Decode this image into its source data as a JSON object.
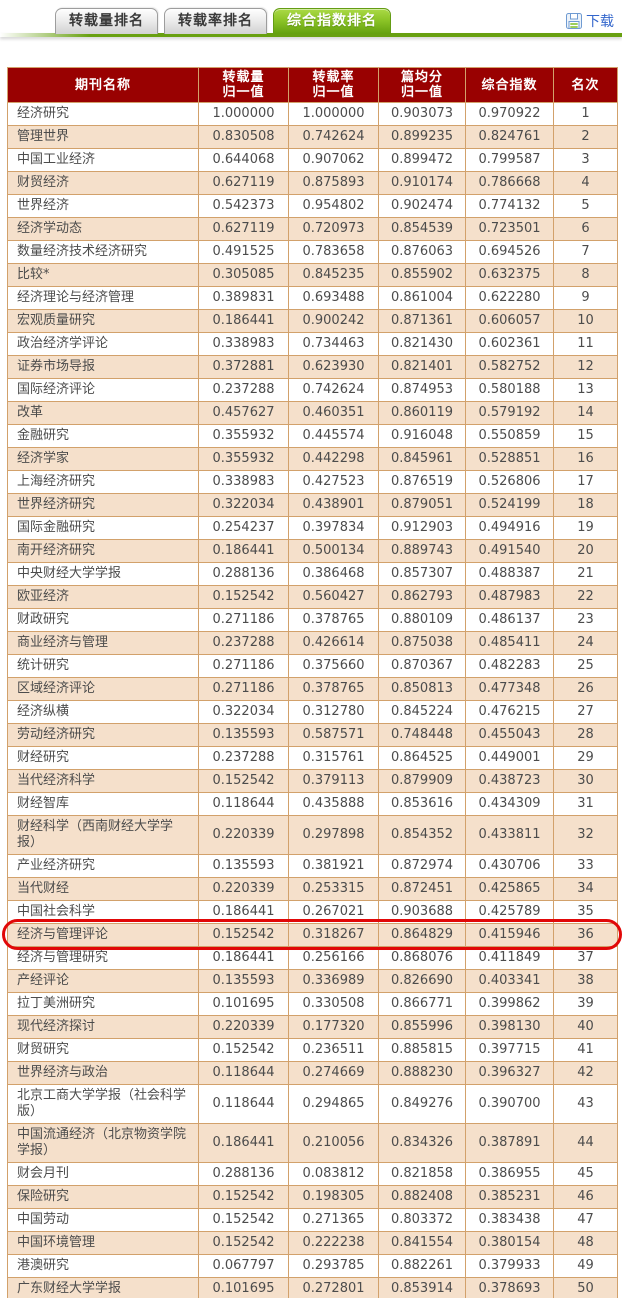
{
  "tabs": [
    {
      "label": "转载量排名",
      "active": false
    },
    {
      "label": "转载率排名",
      "active": false
    },
    {
      "label": "综合指数排名",
      "active": true
    }
  ],
  "toolbar": {
    "download_label": "下载",
    "download_icon": "floppy-disk-icon"
  },
  "table": {
    "headers": [
      "期刊名称",
      "转载量\n归一值",
      "转载率\n归一值",
      "篇均分\n归一值",
      "综合指数",
      "名次"
    ],
    "highlighted_rank": 36,
    "rows": [
      [
        "经济研究",
        "1.000000",
        "1.000000",
        "0.903073",
        "0.970922",
        "1"
      ],
      [
        "管理世界",
        "0.830508",
        "0.742624",
        "0.899235",
        "0.824761",
        "2"
      ],
      [
        "中国工业经济",
        "0.644068",
        "0.907062",
        "0.899472",
        "0.799587",
        "3"
      ],
      [
        "财贸经济",
        "0.627119",
        "0.875893",
        "0.910174",
        "0.786668",
        "4"
      ],
      [
        "世界经济",
        "0.542373",
        "0.954802",
        "0.902474",
        "0.774132",
        "5"
      ],
      [
        "经济学动态",
        "0.627119",
        "0.720973",
        "0.854539",
        "0.723501",
        "6"
      ],
      [
        "数量经济技术经济研究",
        "0.491525",
        "0.783658",
        "0.876063",
        "0.694526",
        "7"
      ],
      [
        "比较*",
        "0.305085",
        "0.845235",
        "0.855902",
        "0.632375",
        "8"
      ],
      [
        "经济理论与经济管理",
        "0.389831",
        "0.693488",
        "0.861004",
        "0.622280",
        "9"
      ],
      [
        "宏观质量研究",
        "0.186441",
        "0.900242",
        "0.871361",
        "0.606057",
        "10"
      ],
      [
        "政治经济学评论",
        "0.338983",
        "0.734463",
        "0.821430",
        "0.602361",
        "11"
      ],
      [
        "证券市场导报",
        "0.372881",
        "0.623930",
        "0.821401",
        "0.582752",
        "12"
      ],
      [
        "国际经济评论",
        "0.237288",
        "0.742624",
        "0.874953",
        "0.580188",
        "13"
      ],
      [
        "改革",
        "0.457627",
        "0.460351",
        "0.860119",
        "0.579192",
        "14"
      ],
      [
        "金融研究",
        "0.355932",
        "0.445574",
        "0.916048",
        "0.550859",
        "15"
      ],
      [
        "经济学家",
        "0.355932",
        "0.442298",
        "0.845961",
        "0.528851",
        "16"
      ],
      [
        "上海经济研究",
        "0.338983",
        "0.427523",
        "0.876519",
        "0.526806",
        "17"
      ],
      [
        "世界经济研究",
        "0.322034",
        "0.438901",
        "0.879051",
        "0.524199",
        "18"
      ],
      [
        "国际金融研究",
        "0.254237",
        "0.397834",
        "0.912903",
        "0.494916",
        "19"
      ],
      [
        "南开经济研究",
        "0.186441",
        "0.500134",
        "0.889743",
        "0.491540",
        "20"
      ],
      [
        "中央财经大学学报",
        "0.288136",
        "0.386468",
        "0.857307",
        "0.488387",
        "21"
      ],
      [
        "欧亚经济",
        "0.152542",
        "0.560427",
        "0.862793",
        "0.487983",
        "22"
      ],
      [
        "财政研究",
        "0.271186",
        "0.378765",
        "0.880109",
        "0.486137",
        "23"
      ],
      [
        "商业经济与管理",
        "0.237288",
        "0.426614",
        "0.875038",
        "0.485411",
        "24"
      ],
      [
        "统计研究",
        "0.271186",
        "0.375660",
        "0.870367",
        "0.482283",
        "25"
      ],
      [
        "区域经济评论",
        "0.271186",
        "0.378765",
        "0.850813",
        "0.477348",
        "26"
      ],
      [
        "经济纵横",
        "0.322034",
        "0.312780",
        "0.845224",
        "0.476215",
        "27"
      ],
      [
        "劳动经济研究",
        "0.135593",
        "0.587571",
        "0.748448",
        "0.455043",
        "28"
      ],
      [
        "财经研究",
        "0.237288",
        "0.315761",
        "0.864525",
        "0.449001",
        "29"
      ],
      [
        "当代经济科学",
        "0.152542",
        "0.379113",
        "0.879909",
        "0.438723",
        "30"
      ],
      [
        "财经智库",
        "0.118644",
        "0.435888",
        "0.853616",
        "0.434309",
        "31"
      ],
      [
        "财经科学（西南财经大学学报）",
        "0.220339",
        "0.297898",
        "0.854352",
        "0.433811",
        "32"
      ],
      [
        "产业经济研究",
        "0.135593",
        "0.381921",
        "0.872974",
        "0.430706",
        "33"
      ],
      [
        "当代财经",
        "0.220339",
        "0.253315",
        "0.872451",
        "0.425865",
        "34"
      ],
      [
        "中国社会科学",
        "0.186441",
        "0.267021",
        "0.903688",
        "0.425789",
        "35"
      ],
      [
        "经济与管理评论",
        "0.152542",
        "0.318267",
        "0.864829",
        "0.415946",
        "36"
      ],
      [
        "经济与管理研究",
        "0.186441",
        "0.256166",
        "0.868076",
        "0.411849",
        "37"
      ],
      [
        "产经评论",
        "0.135593",
        "0.336989",
        "0.826690",
        "0.403341",
        "38"
      ],
      [
        "拉丁美洲研究",
        "0.101695",
        "0.330508",
        "0.866771",
        "0.399862",
        "39"
      ],
      [
        "现代经济探讨",
        "0.220339",
        "0.177320",
        "0.855996",
        "0.398130",
        "40"
      ],
      [
        "财贸研究",
        "0.152542",
        "0.236511",
        "0.885815",
        "0.397715",
        "41"
      ],
      [
        "世界经济与政治",
        "0.118644",
        "0.274669",
        "0.888230",
        "0.396327",
        "42"
      ],
      [
        "北京工商大学学报（社会科学版）",
        "0.118644",
        "0.294865",
        "0.849276",
        "0.390700",
        "43"
      ],
      [
        "中国流通经济（北京物资学院学报）",
        "0.186441",
        "0.210056",
        "0.834326",
        "0.387891",
        "44"
      ],
      [
        "财会月刊",
        "0.288136",
        "0.083812",
        "0.821858",
        "0.386955",
        "45"
      ],
      [
        "保险研究",
        "0.152542",
        "0.198305",
        "0.882408",
        "0.385231",
        "46"
      ],
      [
        "中国劳动",
        "0.152542",
        "0.271365",
        "0.803372",
        "0.383438",
        "47"
      ],
      [
        "中国环境管理",
        "0.152542",
        "0.222238",
        "0.841554",
        "0.380154",
        "48"
      ],
      [
        "港澳研究",
        "0.067797",
        "0.293785",
        "0.882261",
        "0.379933",
        "49"
      ],
      [
        "广东财经大学学报",
        "0.101695",
        "0.272801",
        "0.853914",
        "0.378693",
        "50"
      ]
    ]
  },
  "colors": {
    "header_bg": "#990101",
    "table_border": "#d2a16b",
    "row_alt_bg": "#f5e0cb",
    "highlight_ring": "#e10808",
    "active_tab_green": "#68a010",
    "link_blue": "#3366cc"
  }
}
